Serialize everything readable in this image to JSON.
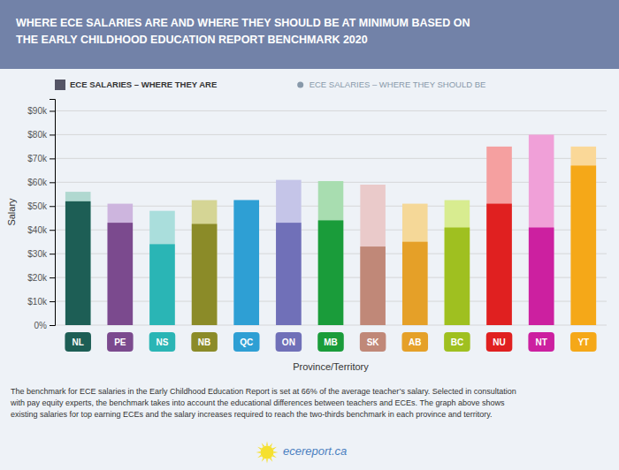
{
  "chart_data": {
    "type": "bar",
    "title": "WHERE ECE SALARIES ARE AND WHERE THEY SHOULD BE AT MINIMUM BASED ON\nTHE EARLY CHILDHOOD EDUCATION REPORT BENCHMARK 2020",
    "x_label": "Province/Territory",
    "y_label": "Salary",
    "categories": [
      "NL",
      "PE",
      "NS",
      "NB",
      "QC",
      "ON",
      "MB",
      "SK",
      "AB",
      "BC",
      "NU",
      "NT",
      "YT"
    ],
    "series": [
      {
        "name": "ECE SALARIES – WHERE THEY ARE",
        "values": [
          52000,
          43000,
          34000,
          42500,
          52500,
          43000,
          44000,
          33000,
          35000,
          41000,
          51000,
          41000,
          67000
        ],
        "colors": [
          "#1d5e55",
          "#7b4a8e",
          "#2ab5b5",
          "#8b8b28",
          "#2e9fd4",
          "#7070b8",
          "#1a9c3a",
          "#c08878",
          "#e5a028",
          "#9fc020",
          "#e02020",
          "#cc20a0",
          "#f5a818"
        ]
      },
      {
        "name": "ECE SALARIES – WHERE THEY SHOULD BE",
        "values": [
          56000,
          51000,
          48000,
          52500,
          52500,
          61000,
          60500,
          59000,
          51000,
          52500,
          75000,
          80000,
          75000
        ],
        "colors": [
          "#b0d8d0",
          "#cdb5de",
          "#aadedc",
          "#d5d595",
          "#aad4f0",
          "#c5c5e8",
          "#a8ddb0",
          "#eacaca",
          "#f5d898",
          "#d8ec90",
          "#f5a0a0",
          "#f0a0d8",
          "#fad898"
        ]
      }
    ],
    "ylim": [
      0,
      95000
    ],
    "yticks": [
      {
        "value": 0,
        "label": "0%"
      },
      {
        "value": 10000,
        "label": "$10k"
      },
      {
        "value": 20000,
        "label": "$20k"
      },
      {
        "value": 30000,
        "label": "$30k"
      },
      {
        "value": 40000,
        "label": "$40k"
      },
      {
        "value": 50000,
        "label": "$50k"
      },
      {
        "value": 60000,
        "label": "$60k"
      },
      {
        "value": 70000,
        "label": "$70k"
      },
      {
        "value": 80000,
        "label": "$80k"
      },
      {
        "value": 90000,
        "label": "$90k"
      }
    ],
    "grid": true,
    "legend": "top",
    "annotations": [
      "The benchmark for ECE salaries in the Early Childhood Education Report is set at 66% of the average teacher’s salary. Selected in consultation",
      "with pay equity experts, the benchmark takes into account the educational differences between teachers and ECEs. The graph above shows",
      "existing salaries for top earning ECEs and the salary increases required to reach the two-thirds benchmark in each province and territory.",
      "ecereport.ca"
    ]
  }
}
